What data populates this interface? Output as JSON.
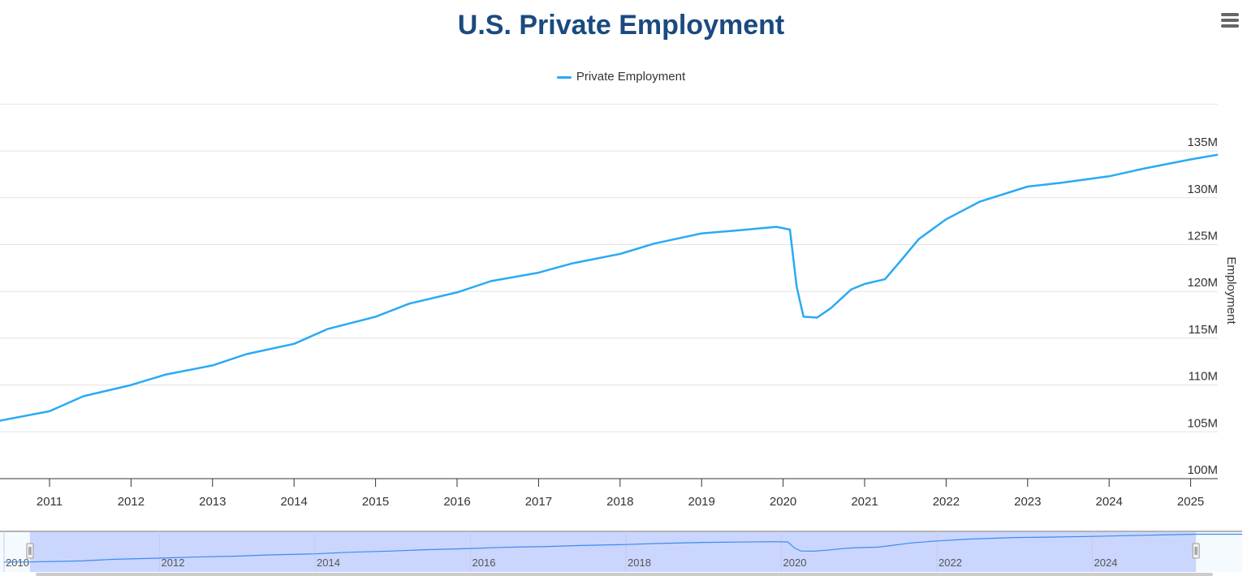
{
  "chart_data": {
    "type": "line",
    "title": "U.S. Private Employment",
    "ylabel": "Employment",
    "ylim": [
      100,
      140
    ],
    "yunit": "M",
    "y_ticks": [
      "100M",
      "105M",
      "110M",
      "115M",
      "120M",
      "125M",
      "130M",
      "135M"
    ],
    "x_ticks": [
      "2011",
      "2012",
      "2013",
      "2014",
      "2015",
      "2016",
      "2017",
      "2018",
      "2019",
      "2020",
      "2021",
      "2022",
      "2023",
      "2024",
      "2025"
    ],
    "xrange": [
      "2010-05",
      "2025-05"
    ],
    "grid": true,
    "legend_position": "top",
    "series": [
      {
        "name": "Private Employment",
        "color": "#29aaf4",
        "points": [
          [
            "2010-05",
            106.1
          ],
          [
            "2011-01",
            107.2
          ],
          [
            "2011-06",
            108.8
          ],
          [
            "2012-01",
            110.0
          ],
          [
            "2012-06",
            111.1
          ],
          [
            "2013-01",
            112.1
          ],
          [
            "2013-06",
            113.3
          ],
          [
            "2014-01",
            114.4
          ],
          [
            "2014-06",
            116.0
          ],
          [
            "2015-01",
            117.3
          ],
          [
            "2015-06",
            118.7
          ],
          [
            "2016-01",
            119.9
          ],
          [
            "2016-06",
            121.1
          ],
          [
            "2017-01",
            122.0
          ],
          [
            "2017-06",
            123.0
          ],
          [
            "2018-01",
            124.0
          ],
          [
            "2018-06",
            125.1
          ],
          [
            "2019-01",
            126.2
          ],
          [
            "2019-06",
            126.5
          ],
          [
            "2019-12",
            126.9
          ],
          [
            "2020-02",
            126.6
          ],
          [
            "2020-03",
            120.5
          ],
          [
            "2020-04",
            117.3
          ],
          [
            "2020-06",
            117.2
          ],
          [
            "2020-08",
            118.2
          ],
          [
            "2020-11",
            120.2
          ],
          [
            "2021-01",
            120.8
          ],
          [
            "2021-04",
            121.3
          ],
          [
            "2021-06",
            123.0
          ],
          [
            "2021-09",
            125.6
          ],
          [
            "2022-01",
            127.7
          ],
          [
            "2022-06",
            129.6
          ],
          [
            "2023-01",
            131.2
          ],
          [
            "2023-06",
            131.6
          ],
          [
            "2024-01",
            132.3
          ],
          [
            "2024-06",
            133.1
          ],
          [
            "2025-01",
            134.1
          ],
          [
            "2025-05",
            134.6
          ]
        ]
      }
    ],
    "navigator": {
      "x_ticks": [
        "2010",
        "2012",
        "2014",
        "2016",
        "2018",
        "2020",
        "2022",
        "2024"
      ],
      "selected_range": [
        "2010-05",
        "2025-05"
      ]
    }
  },
  "menu_icon": "hamburger-menu-icon"
}
